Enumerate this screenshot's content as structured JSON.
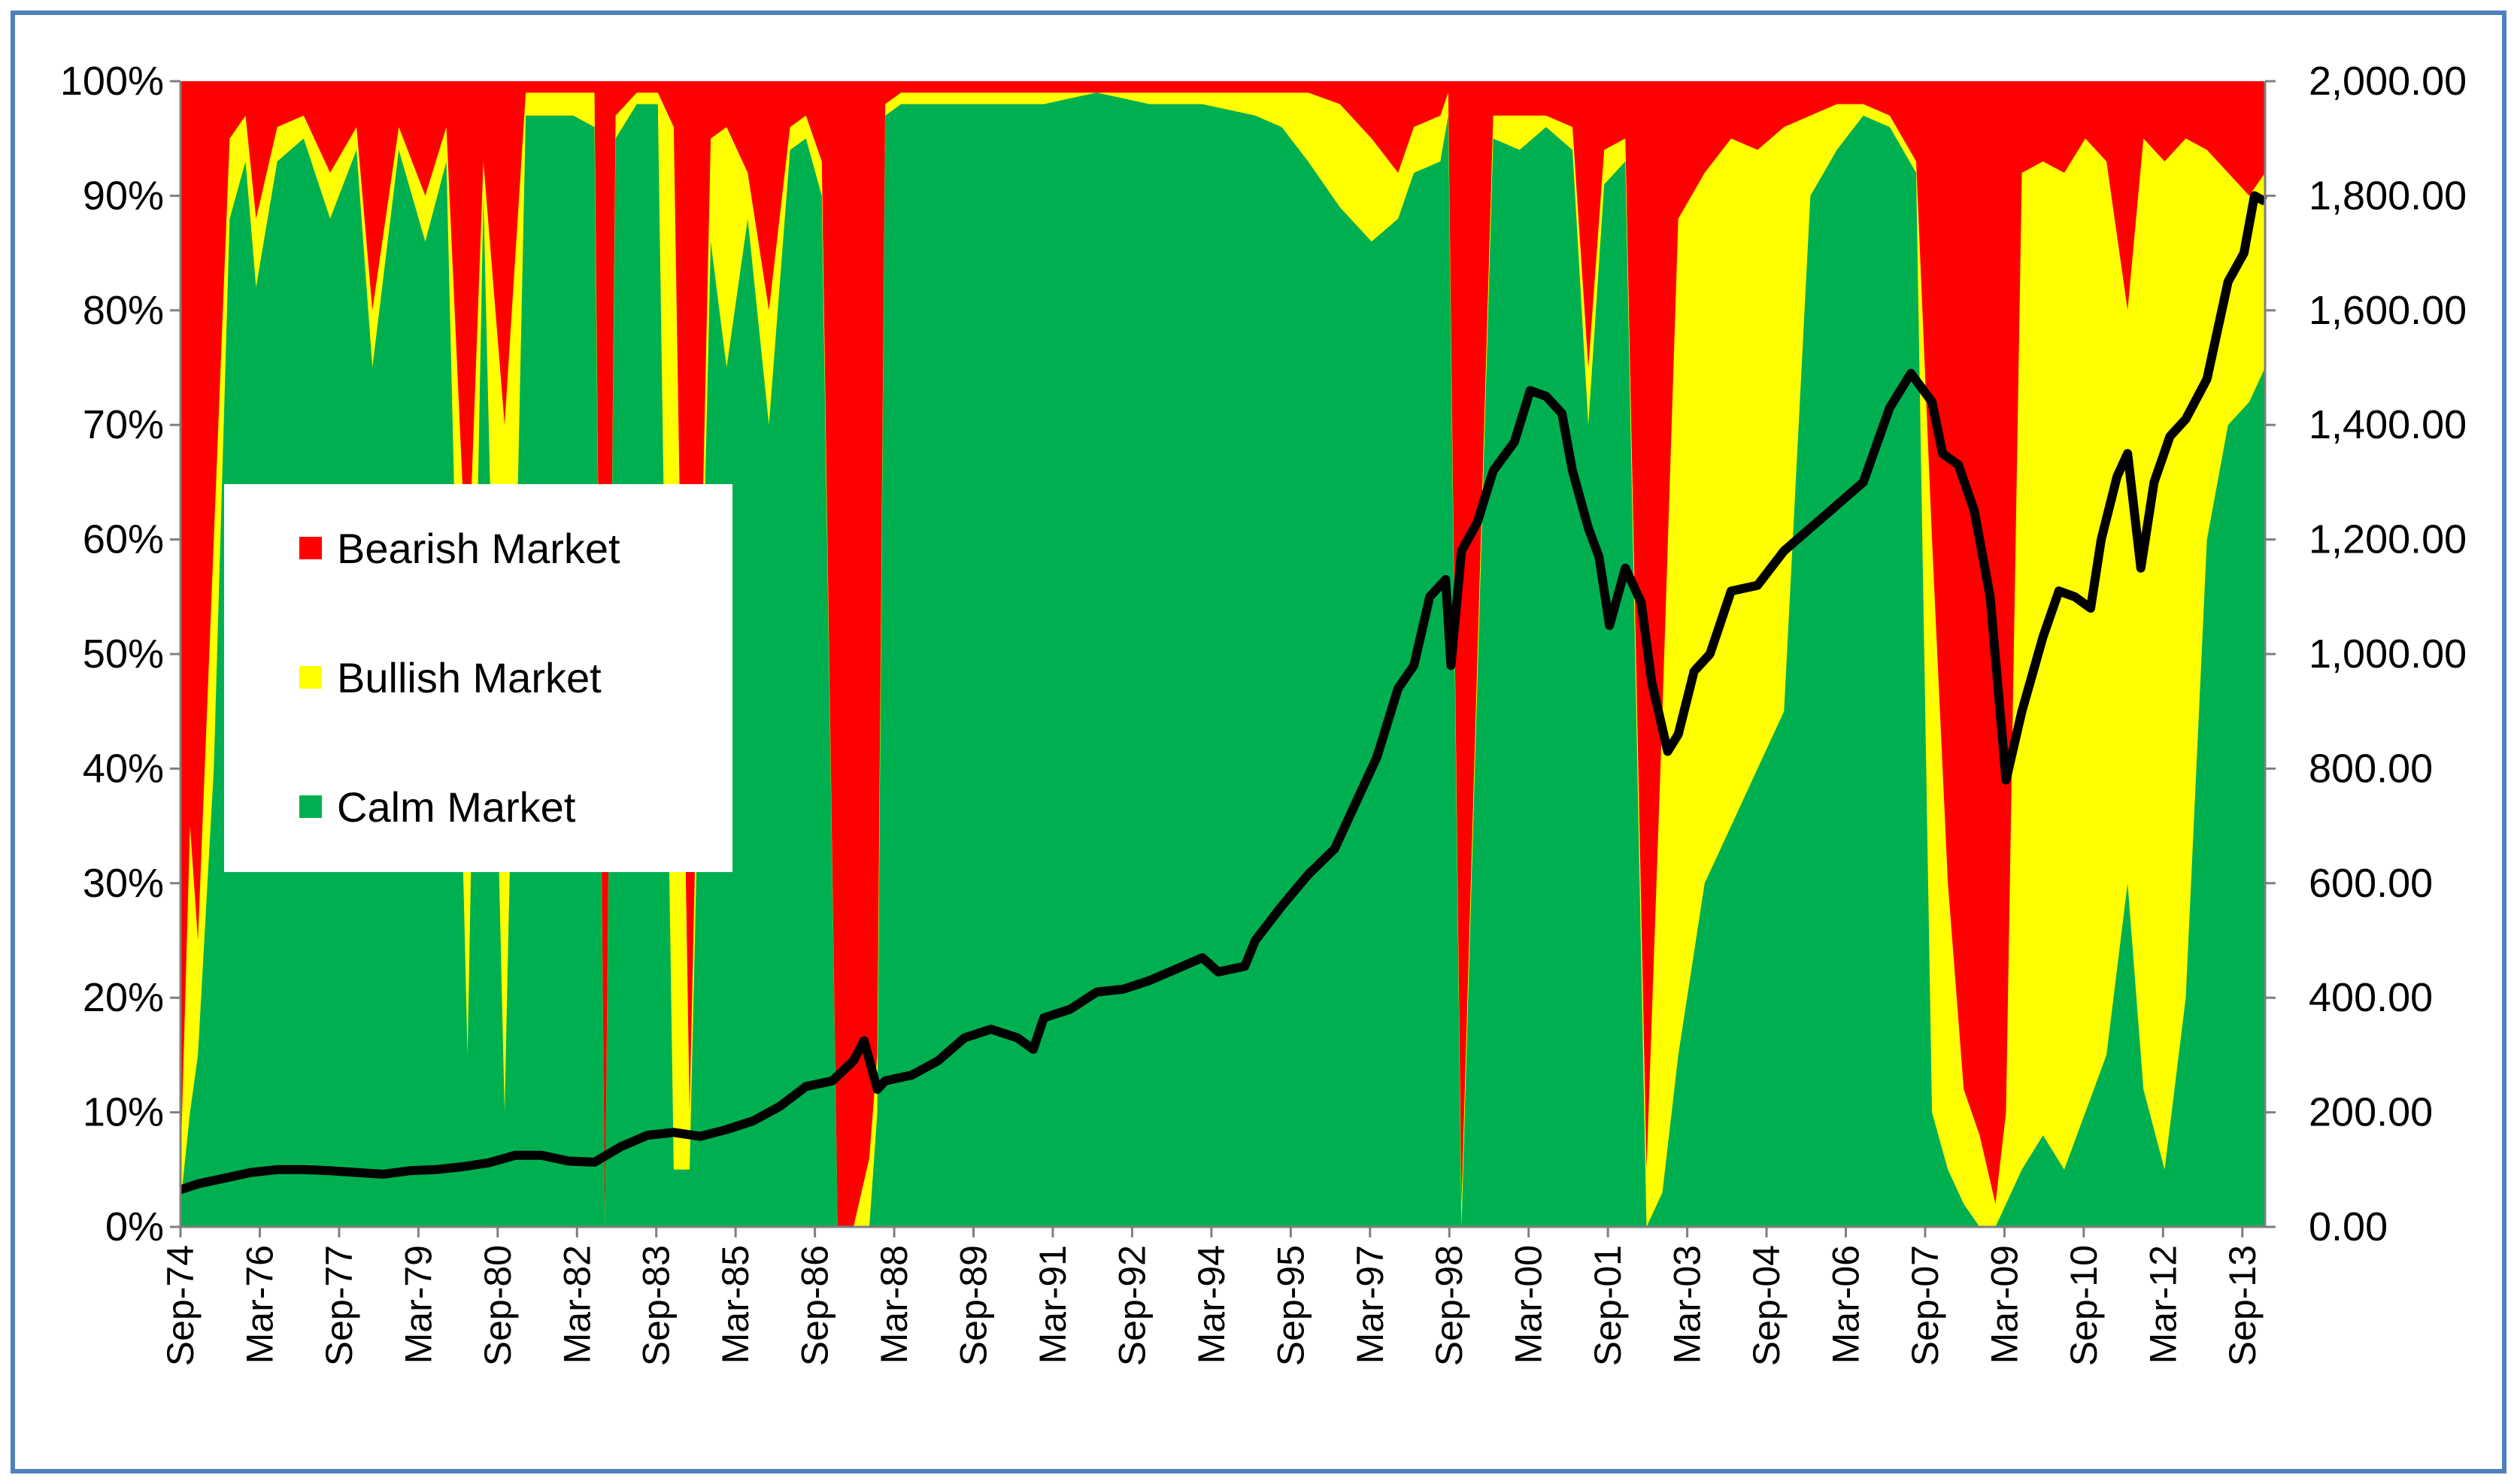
{
  "chart_data": {
    "type": "area",
    "stacked": true,
    "title": "",
    "xlabel": "",
    "ylabel_left": "",
    "ylabel_right": "",
    "left_axis": {
      "ticks": [
        "0%",
        "10%",
        "20%",
        "30%",
        "40%",
        "50%",
        "60%",
        "70%",
        "80%",
        "90%",
        "100%"
      ],
      "ylim": [
        0,
        100
      ]
    },
    "right_axis": {
      "ticks": [
        "0.00",
        "200.00",
        "400.00",
        "600.00",
        "800.00",
        "1,000.00",
        "1,200.00",
        "1,400.00",
        "1,600.00",
        "1,800.00",
        "2,000.00"
      ],
      "ylim": [
        0,
        2000
      ]
    },
    "x_ticks": [
      "Sep-74",
      "Mar-76",
      "Sep-77",
      "Mar-79",
      "Sep-80",
      "Mar-82",
      "Sep-83",
      "Mar-85",
      "Sep-86",
      "Mar-88",
      "Sep-89",
      "Mar-91",
      "Sep-92",
      "Mar-94",
      "Sep-95",
      "Mar-97",
      "Sep-98",
      "Mar-00",
      "Sep-01",
      "Mar-03",
      "Sep-04",
      "Mar-06",
      "Sep-07",
      "Mar-09",
      "Sep-10",
      "Mar-12",
      "Sep-13"
    ],
    "xlim": [
      1974.67,
      2014.1
    ],
    "grid": false,
    "legend_position": "left-center",
    "series": [
      {
        "name": "Bearish Market",
        "color": "#ff0000",
        "role": "stacked-area-remainder",
        "x": [
          1974.67,
          2014.1
        ],
        "values_pct": [
          100,
          100
        ]
      },
      {
        "name": "Bullish Market",
        "color": "#ffff00",
        "role": "stacked-area-top",
        "x": [
          1974.67,
          1974.85,
          1975.0,
          1975.3,
          1975.6,
          1975.9,
          1976.1,
          1976.5,
          1977.0,
          1977.5,
          1978.0,
          1978.3,
          1978.8,
          1979.3,
          1979.7,
          1980.1,
          1980.4,
          1980.8,
          1981.2,
          1981.6,
          1982.1,
          1982.5,
          1982.7,
          1982.9,
          1983.3,
          1983.7,
          1984.0,
          1984.3,
          1984.7,
          1985.0,
          1985.4,
          1985.8,
          1986.2,
          1986.5,
          1986.8,
          1987.1,
          1987.4,
          1987.7,
          1987.85,
          1988.0,
          1988.3,
          1989.0,
          1990.0,
          1991.0,
          1992.0,
          1993.0,
          1994.0,
          1995.0,
          1995.5,
          1996.0,
          1996.6,
          1997.2,
          1997.7,
          1998.0,
          1998.5,
          1998.65,
          1998.9,
          1999.5,
          2000.0,
          2000.5,
          2001.0,
          2001.3,
          2001.6,
          2002.0,
          2002.4,
          2002.7,
          2003.0,
          2003.5,
          2004.0,
          2004.5,
          2005.0,
          2005.5,
          2006.0,
          2006.5,
          2007.0,
          2007.5,
          2007.8,
          2008.1,
          2008.4,
          2008.7,
          2009.0,
          2009.2,
          2009.5,
          2009.9,
          2010.3,
          2010.7,
          2011.1,
          2011.5,
          2011.8,
          2012.2,
          2012.6,
          2013.0,
          2013.4,
          2013.8,
          2014.1
        ],
        "values_pct": [
          5,
          35,
          25,
          60,
          95,
          97,
          88,
          96,
          97,
          92,
          96,
          80,
          96,
          90,
          96,
          55,
          93,
          70,
          99,
          99,
          99,
          99,
          0,
          97,
          99,
          99,
          96,
          10,
          95,
          96,
          92,
          80,
          96,
          97,
          93,
          0,
          0,
          6,
          15,
          98,
          99,
          99,
          99,
          99,
          99,
          99,
          99,
          99,
          99,
          99,
          98,
          95,
          92,
          96,
          97,
          99,
          2,
          97,
          97,
          97,
          96,
          75,
          94,
          95,
          5,
          45,
          88,
          92,
          95,
          94,
          96,
          97,
          98,
          98,
          97,
          93,
          60,
          30,
          12,
          8,
          2,
          10,
          92,
          93,
          92,
          95,
          93,
          80,
          95,
          93,
          95,
          94,
          92,
          90,
          92
        ]
      },
      {
        "name": "Calm Market",
        "color": "#00b050",
        "role": "stacked-area-bottom",
        "x": [
          1974.67,
          1974.85,
          1975.0,
          1975.3,
          1975.6,
          1975.9,
          1976.1,
          1976.5,
          1977.0,
          1977.5,
          1978.0,
          1978.3,
          1978.8,
          1979.3,
          1979.7,
          1980.1,
          1980.4,
          1980.8,
          1981.2,
          1981.6,
          1982.1,
          1982.5,
          1982.7,
          1982.9,
          1983.3,
          1983.7,
          1984.0,
          1984.3,
          1984.7,
          1985.0,
          1985.4,
          1985.8,
          1986.2,
          1986.5,
          1986.8,
          1987.1,
          1987.4,
          1987.7,
          1987.85,
          1988.0,
          1988.3,
          1989.0,
          1990.0,
          1991.0,
          1992.0,
          1993.0,
          1994.0,
          1995.0,
          1995.5,
          1996.0,
          1996.6,
          1997.2,
          1997.7,
          1998.0,
          1998.5,
          1998.65,
          1998.9,
          1999.5,
          2000.0,
          2000.5,
          2001.0,
          2001.3,
          2001.6,
          2002.0,
          2002.4,
          2002.7,
          2003.0,
          2003.5,
          2004.0,
          2004.5,
          2005.0,
          2005.5,
          2006.0,
          2006.5,
          2007.0,
          2007.5,
          2007.8,
          2008.1,
          2008.4,
          2008.7,
          2009.0,
          2009.2,
          2009.5,
          2009.9,
          2010.3,
          2010.7,
          2011.1,
          2011.5,
          2011.8,
          2012.2,
          2012.6,
          2013.0,
          2013.4,
          2013.8,
          2014.1
        ],
        "values_pct": [
          2,
          10,
          15,
          40,
          88,
          93,
          82,
          93,
          95,
          88,
          94,
          75,
          94,
          86,
          93,
          15,
          90,
          10,
          97,
          97,
          97,
          96,
          0,
          95,
          98,
          98,
          5,
          5,
          86,
          75,
          88,
          70,
          94,
          95,
          90,
          0,
          0,
          0,
          10,
          97,
          98,
          98,
          98,
          98,
          99,
          98,
          98,
          97,
          96,
          93,
          89,
          86,
          88,
          92,
          93,
          97,
          0,
          95,
          94,
          96,
          94,
          70,
          91,
          93,
          0,
          3,
          15,
          30,
          35,
          40,
          45,
          90,
          94,
          97,
          96,
          92,
          10,
          5,
          2,
          0,
          0,
          2,
          5,
          8,
          5,
          10,
          15,
          30,
          12,
          5,
          20,
          60,
          70,
          72,
          75
        ]
      },
      {
        "name": "",
        "color": "#000000",
        "role": "line-right-axis",
        "x": [
          1974.67,
          1975.0,
          1975.5,
          1976.0,
          1976.5,
          1977.0,
          1977.5,
          1978.0,
          1978.5,
          1979.0,
          1979.5,
          1980.0,
          1980.5,
          1981.0,
          1981.5,
          1982.0,
          1982.5,
          1983.0,
          1983.5,
          1984.0,
          1984.5,
          1985.0,
          1985.5,
          1986.0,
          1986.5,
          1987.0,
          1987.4,
          1987.6,
          1987.85,
          1988.0,
          1988.5,
          1989.0,
          1989.5,
          1990.0,
          1990.5,
          1990.8,
          1991.0,
          1991.5,
          1992.0,
          1992.5,
          1993.0,
          1993.5,
          1994.0,
          1994.3,
          1994.8,
          1995.0,
          1995.5,
          1996.0,
          1996.5,
          1997.0,
          1997.3,
          1997.7,
          1998.0,
          1998.3,
          1998.6,
          1998.7,
          1998.9,
          1999.2,
          1999.5,
          1999.9,
          2000.2,
          2000.5,
          2000.8,
          2001.0,
          2001.3,
          2001.5,
          2001.7,
          2002.0,
          2002.3,
          2002.5,
          2002.8,
          2003.0,
          2003.3,
          2003.6,
          2004.0,
          2004.5,
          2005.0,
          2005.5,
          2006.0,
          2006.5,
          2007.0,
          2007.4,
          2007.8,
          2008.0,
          2008.3,
          2008.6,
          2008.9,
          2009.2,
          2009.5,
          2009.9,
          2010.2,
          2010.5,
          2010.8,
          2011.0,
          2011.3,
          2011.5,
          2011.75,
          2012.0,
          2012.3,
          2012.6,
          2013.0,
          2013.4,
          2013.7,
          2013.9,
          2014.1
        ],
        "values": [
          65,
          75,
          85,
          95,
          100,
          100,
          98,
          95,
          92,
          98,
          100,
          105,
          112,
          125,
          125,
          115,
          113,
          140,
          160,
          165,
          158,
          170,
          185,
          210,
          245,
          255,
          290,
          325,
          240,
          255,
          265,
          290,
          330,
          345,
          330,
          310,
          365,
          380,
          410,
          415,
          430,
          450,
          470,
          445,
          455,
          500,
          560,
          615,
          660,
          760,
          820,
          940,
          980,
          1100,
          1130,
          980,
          1180,
          1230,
          1320,
          1370,
          1460,
          1450,
          1420,
          1320,
          1220,
          1170,
          1050,
          1150,
          1090,
          950,
          830,
          860,
          970,
          1000,
          1110,
          1120,
          1180,
          1220,
          1260,
          1300,
          1430,
          1490,
          1440,
          1350,
          1330,
          1250,
          1100,
          780,
          900,
          1030,
          1110,
          1100,
          1080,
          1200,
          1310,
          1350,
          1150,
          1300,
          1380,
          1410,
          1480,
          1650,
          1700,
          1800,
          1790
        ]
      }
    ]
  },
  "legend": {
    "items": [
      {
        "label": "Bearish Market",
        "color": "#ff0000"
      },
      {
        "label": "Bullish Market",
        "color": "#ffff00"
      },
      {
        "label": "Calm Market",
        "color": "#00b050"
      }
    ]
  }
}
